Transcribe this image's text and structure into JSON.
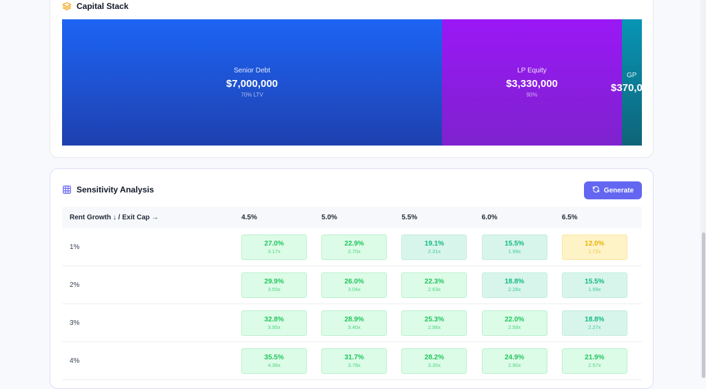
{
  "capital_stack": {
    "title": "Capital Stack",
    "icon": "layers-icon",
    "segments": [
      {
        "name": "Senior Debt",
        "amount": "$7,000,000",
        "sub": "70% LTV",
        "color": "#1d4ed8"
      },
      {
        "name": "LP Equity",
        "amount": "$3,330,000",
        "sub": "90%",
        "color": "#9333ea"
      },
      {
        "name": "GP",
        "amount": "$370,0",
        "sub": "",
        "color": "#0e7490"
      }
    ]
  },
  "sensitivity": {
    "title": "Sensitivity Analysis",
    "icon": "table-grid-icon",
    "generate_label": "Generate",
    "generate_icon": "refresh-icon",
    "corner_header": "Rent Growth ↓ / Exit Cap →",
    "exit_caps": [
      "4.5%",
      "5.0%",
      "5.5%",
      "6.0%",
      "6.5%"
    ],
    "rows": [
      {
        "label": "1%",
        "cells": [
          {
            "irr": "27.0%",
            "mult": "3.17x",
            "level": "high"
          },
          {
            "irr": "22.9%",
            "mult": "2.70x",
            "level": "high"
          },
          {
            "irr": "19.1%",
            "mult": "2.31x",
            "level": "mid"
          },
          {
            "irr": "15.5%",
            "mult": "1.99x",
            "level": "mid"
          },
          {
            "irr": "12.0%",
            "mult": "1.72x",
            "level": "low"
          }
        ]
      },
      {
        "label": "2%",
        "cells": [
          {
            "irr": "29.9%",
            "mult": "3.55x",
            "level": "high"
          },
          {
            "irr": "26.0%",
            "mult": "3.04x",
            "level": "high"
          },
          {
            "irr": "22.3%",
            "mult": "2.63x",
            "level": "high"
          },
          {
            "irr": "18.8%",
            "mult": "2.28x",
            "level": "mid"
          },
          {
            "irr": "15.5%",
            "mult": "1.99x",
            "level": "mid"
          }
        ]
      },
      {
        "label": "3%",
        "cells": [
          {
            "irr": "32.8%",
            "mult": "3.95x",
            "level": "high"
          },
          {
            "irr": "28.9%",
            "mult": "3.40x",
            "level": "high"
          },
          {
            "irr": "25.3%",
            "mult": "2.96x",
            "level": "high"
          },
          {
            "irr": "22.0%",
            "mult": "2.59x",
            "level": "high"
          },
          {
            "irr": "18.8%",
            "mult": "2.27x",
            "level": "mid"
          }
        ]
      },
      {
        "label": "4%",
        "cells": [
          {
            "irr": "35.5%",
            "mult": "4.36x",
            "level": "high"
          },
          {
            "irr": "31.7%",
            "mult": "3.78x",
            "level": "high"
          },
          {
            "irr": "28.2%",
            "mult": "3.30x",
            "level": "high"
          },
          {
            "irr": "24.9%",
            "mult": "2.90x",
            "level": "high"
          },
          {
            "irr": "21.9%",
            "mult": "2.57x",
            "level": "high"
          }
        ]
      }
    ]
  }
}
